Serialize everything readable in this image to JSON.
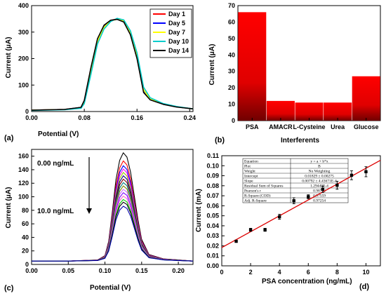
{
  "chart_data": [
    {
      "panel": "(a)",
      "type": "line",
      "xlabel": "Potential (V)",
      "ylabel": "Current (μA)",
      "xlim": [
        0,
        0.245
      ],
      "ylim": [
        0,
        400
      ],
      "xticks": [
        "0.00",
        "0.08",
        "0.16",
        "0.24"
      ],
      "yticks": [
        "0",
        "100",
        "200",
        "300",
        "400"
      ],
      "legend_position": "top-right",
      "series": [
        {
          "name": "Day 1",
          "color": "#ff0000",
          "x": [
            0,
            0.05,
            0.075,
            0.08,
            0.09,
            0.1,
            0.11,
            0.12,
            0.13,
            0.14,
            0.15,
            0.16,
            0.17,
            0.18,
            0.2,
            0.22,
            0.245
          ],
          "y": [
            5,
            8,
            15,
            40,
            160,
            270,
            322,
            344,
            350,
            340,
            295,
            205,
            75,
            45,
            28,
            18,
            10
          ]
        },
        {
          "name": "Day 5",
          "color": "#0000ff",
          "x": [
            0,
            0.05,
            0.075,
            0.08,
            0.09,
            0.1,
            0.11,
            0.12,
            0.13,
            0.14,
            0.15,
            0.16,
            0.17,
            0.18,
            0.2,
            0.22,
            0.245
          ],
          "y": [
            5,
            8,
            15,
            38,
            158,
            268,
            320,
            343,
            349,
            341,
            296,
            208,
            78,
            46,
            28,
            18,
            10
          ]
        },
        {
          "name": "Day 7",
          "color": "#ffff00",
          "x": [
            0,
            0.05,
            0.075,
            0.08,
            0.09,
            0.1,
            0.11,
            0.12,
            0.13,
            0.14,
            0.15,
            0.16,
            0.17,
            0.18,
            0.2,
            0.22,
            0.245
          ],
          "y": [
            5,
            8,
            14,
            36,
            155,
            266,
            319,
            342,
            349,
            342,
            298,
            212,
            82,
            47,
            29,
            18,
            10
          ]
        },
        {
          "name": "Day 10",
          "color": "#00cccc",
          "x": [
            0,
            0.05,
            0.075,
            0.08,
            0.09,
            0.1,
            0.11,
            0.12,
            0.13,
            0.14,
            0.15,
            0.16,
            0.17,
            0.18,
            0.2,
            0.22,
            0.245
          ],
          "y": [
            4,
            7,
            12,
            30,
            140,
            255,
            312,
            340,
            352,
            346,
            305,
            222,
            92,
            52,
            30,
            19,
            10
          ]
        },
        {
          "name": "Day 14",
          "color": "#000000",
          "x": [
            0,
            0.05,
            0.075,
            0.08,
            0.09,
            0.1,
            0.11,
            0.12,
            0.13,
            0.14,
            0.15,
            0.16,
            0.17,
            0.18,
            0.2,
            0.22,
            0.245
          ],
          "y": [
            5,
            8,
            16,
            42,
            165,
            275,
            326,
            345,
            348,
            338,
            290,
            200,
            72,
            44,
            27,
            17,
            10
          ]
        }
      ]
    },
    {
      "panel": "(b)",
      "type": "bar",
      "xlabel": "Interferents",
      "ylabel": "Current (μA)",
      "ylim": [
        0,
        70
      ],
      "yticks": [
        "0",
        "10",
        "20",
        "30",
        "40",
        "50",
        "60",
        "70"
      ],
      "categories": [
        "PSA",
        "AMACR",
        "L-Cysteine",
        "Urea",
        "Glucose"
      ],
      "values": [
        66,
        12,
        11,
        11,
        27
      ],
      "bar_color": "#ff0000"
    },
    {
      "panel": "(c)",
      "type": "line",
      "xlabel": "Potential (V)",
      "ylabel": "Current (μA)",
      "xlim": [
        0,
        0.22
      ],
      "ylim": [
        0,
        170
      ],
      "xticks": [
        "0.00",
        "0.05",
        "0.10",
        "0.15",
        "0.20"
      ],
      "yticks": [
        "0",
        "20",
        "40",
        "60",
        "80",
        "100",
        "120",
        "140",
        "160"
      ],
      "annotations": [
        "0.00 ng/mL",
        "10.0 ng/mL"
      ],
      "x": [
        0,
        0.05,
        0.09,
        0.1,
        0.105,
        0.11,
        0.115,
        0.12,
        0.125,
        0.13,
        0.135,
        0.14,
        0.145,
        0.15,
        0.16,
        0.18,
        0.2,
        0.22
      ],
      "shape": [
        0,
        0,
        0.01,
        0.05,
        0.18,
        0.45,
        0.75,
        0.93,
        1.0,
        0.96,
        0.82,
        0.6,
        0.38,
        0.2,
        0.06,
        0.02,
        0.01,
        0.0
      ],
      "baseline": 5,
      "series": [
        {
          "color": "#000000",
          "peak": 165
        },
        {
          "color": "#ff0000",
          "peak": 153
        },
        {
          "color": "#0000ff",
          "peak": 146
        },
        {
          "color": "#ff00ff",
          "peak": 141
        },
        {
          "color": "#99cc00",
          "peak": 136
        },
        {
          "color": "#000080",
          "peak": 131
        },
        {
          "color": "#800000",
          "peak": 126
        },
        {
          "color": "#008080",
          "peak": 121
        },
        {
          "color": "#808000",
          "peak": 116
        },
        {
          "color": "#cc66ff",
          "peak": 111
        },
        {
          "color": "#8000ff",
          "peak": 106
        },
        {
          "color": "#ff66cc",
          "peak": 101
        },
        {
          "color": "#00cc00",
          "peak": 96
        },
        {
          "color": "#000000",
          "peak": 92
        },
        {
          "color": "#0000aa",
          "peak": 86
        }
      ]
    },
    {
      "panel": "(d)",
      "type": "scatter",
      "xlabel": "PSA concentration (ng/mL)",
      "ylabel": "Current (mA)",
      "xlim": [
        0,
        11
      ],
      "ylim": [
        0,
        0.11
      ],
      "xticks": [
        "0",
        "2",
        "4",
        "6",
        "8",
        "10"
      ],
      "yticks": [
        "0.00",
        "0.01",
        "0.02",
        "0.03",
        "0.04",
        "0.05",
        "0.06",
        "0.07",
        "0.08",
        "0.09",
        "0.10",
        "0.11"
      ],
      "points": [
        {
          "x": 1,
          "y": 0.0245,
          "err": 0.001
        },
        {
          "x": 2,
          "y": 0.036,
          "err": 0.0015
        },
        {
          "x": 3,
          "y": 0.036,
          "err": 0.0015
        },
        {
          "x": 4,
          "y": 0.049,
          "err": 0.0025
        },
        {
          "x": 5,
          "y": 0.065,
          "err": 0.003
        },
        {
          "x": 6,
          "y": 0.069,
          "err": 0.002
        },
        {
          "x": 7,
          "y": 0.0765,
          "err": 0.003
        },
        {
          "x": 8,
          "y": 0.0805,
          "err": 0.004
        },
        {
          "x": 9,
          "y": 0.0905,
          "err": 0.0045
        },
        {
          "x": 10,
          "y": 0.094,
          "err": 0.005
        }
      ],
      "fit": {
        "intercept": 0.01829,
        "slope": 0.00792
      },
      "fit_table": [
        [
          "Equation",
          "y = a + b*x"
        ],
        [
          "Plot",
          "B"
        ],
        [
          "Weight",
          "No Weighting"
        ],
        [
          "Intercept",
          "0.01829 ± 0.00275"
        ],
        [
          "Slope",
          "0.00792 ± 4.43671E-4"
        ],
        [
          "Residual Sum of Squares",
          "1.29449E-4"
        ],
        [
          "Pearson's r",
          "0.98772"
        ],
        [
          "R-Square (COD)",
          "0.97559"
        ],
        [
          "Adj. R-Square",
          "0.97254"
        ]
      ]
    }
  ]
}
